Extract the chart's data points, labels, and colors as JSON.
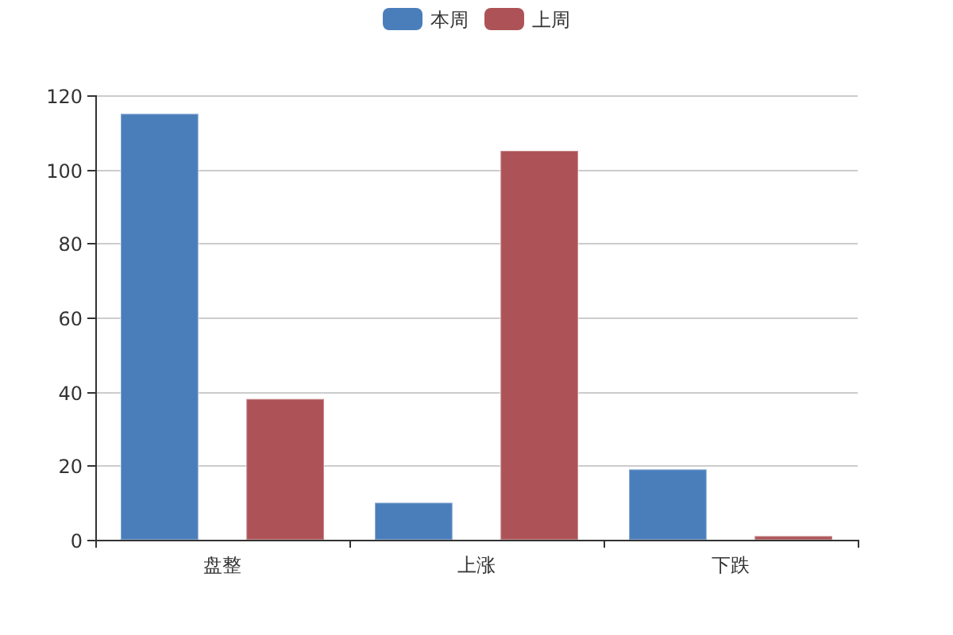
{
  "chart_data": {
    "type": "bar",
    "categories": [
      "盘整",
      "上涨",
      "下跌"
    ],
    "series": [
      {
        "name": "本周",
        "color": "#4a7ebb",
        "values": [
          115,
          10,
          19
        ]
      },
      {
        "name": "上周",
        "color": "#ad5357",
        "values": [
          38,
          105,
          1
        ]
      }
    ],
    "ylim": [
      0,
      120
    ],
    "yticks": [
      0,
      20,
      40,
      60,
      80,
      100,
      120
    ],
    "grid": "y",
    "legend": "top"
  }
}
